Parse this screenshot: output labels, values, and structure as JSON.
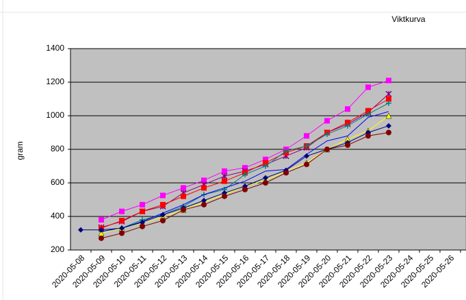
{
  "chart_data": {
    "type": "line",
    "title": "Viktkurva",
    "y_label": "gram",
    "categories": [
      "2020-05-08",
      "2020-05-09",
      "2020-05-10",
      "2020-05-11",
      "2020-05-12",
      "2020-05-13",
      "2020-05-14",
      "2020-05-15",
      "2020-05-16",
      "2020-05-17",
      "2020-05-18",
      "2020-05-19",
      "2020-05-20",
      "2020-05-21",
      "2020-05-22",
      "2020-05-23",
      "2020-05-24",
      "2020-05-25",
      "2020-05-26"
    ],
    "ylim": [
      200,
      1400
    ],
    "yticks": [
      200,
      400,
      600,
      800,
      1000,
      1200,
      1400
    ],
    "grid": true,
    "plot_background": "#c0c0c0",
    "series": [
      {
        "color": "#ff00ff",
        "marker": "square",
        "values": [
          null,
          380,
          430,
          470,
          525,
          570,
          615,
          670,
          690,
          740,
          800,
          880,
          970,
          1040,
          1170,
          1210,
          null,
          null,
          null
        ]
      },
      {
        "color": "#800080",
        "marker": "star",
        "values": [
          null,
          335,
          370,
          430,
          460,
          540,
          590,
          640,
          670,
          710,
          760,
          810,
          900,
          950,
          1020,
          1130,
          null,
          null,
          null
        ]
      },
      {
        "color": "#ff0000",
        "marker": "square",
        "values": [
          null,
          330,
          375,
          430,
          470,
          520,
          570,
          610,
          660,
          720,
          780,
          820,
          900,
          960,
          1030,
          1100,
          null,
          null,
          null
        ]
      },
      {
        "color": "#008080",
        "marker": "plus",
        "values": [
          null,
          310,
          330,
          380,
          410,
          460,
          530,
          560,
          650,
          700,
          790,
          820,
          890,
          940,
          1010,
          1075,
          null,
          null,
          null
        ]
      },
      {
        "color": "#0000ff",
        "marker": "none",
        "values": [
          null,
          310,
          330,
          370,
          420,
          470,
          530,
          570,
          610,
          670,
          680,
          770,
          850,
          880,
          990,
          1025,
          null,
          null,
          null
        ]
      },
      {
        "color": "#ffff00",
        "marker": "triangle",
        "values": [
          null,
          300,
          330,
          360,
          395,
          440,
          485,
          530,
          580,
          615,
          670,
          720,
          800,
          860,
          910,
          1000,
          null,
          null,
          null
        ]
      },
      {
        "color": "#000080",
        "marker": "diamond",
        "values": [
          320,
          320,
          330,
          365,
          410,
          450,
          495,
          540,
          580,
          630,
          675,
          760,
          800,
          840,
          900,
          940,
          null,
          null,
          null
        ]
      },
      {
        "color": "#800000",
        "marker": "circle",
        "values": [
          null,
          270,
          300,
          340,
          375,
          440,
          470,
          520,
          560,
          600,
          660,
          710,
          800,
          825,
          880,
          900,
          null,
          null,
          null
        ]
      }
    ]
  }
}
